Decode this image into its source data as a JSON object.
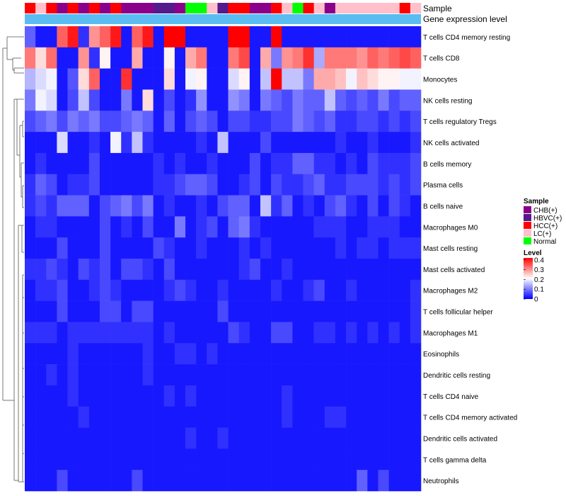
{
  "chart_data": {
    "type": "heatmap",
    "annotation_labels": [
      "Sample",
      "Gene expression level"
    ],
    "row_labels": [
      "T cells CD4 memory resting",
      "T cells CD8",
      "Monocytes",
      "NK cells resting",
      "T cells regulatory  Tregs",
      "NK cells activated",
      "B cells memory",
      "Plasma cells",
      "B cells naive",
      "Macrophages M0",
      "Mast cells resting",
      "Mast cells activated",
      "Macrophages M2",
      "T cells follicular helper",
      "Macrophages M1",
      "Eosinophils",
      "Dendritic cells resting",
      "T cells CD4 naive",
      "T cells CD4 memory activated",
      "Dendritic cells activated",
      "T cells gamma delta",
      "Neutrophils"
    ],
    "sample_annotation": [
      "HCC(+)",
      "LC(+)",
      "HCC(+)",
      "CHB(+)",
      "HCC(+)",
      "CHB(+)",
      "HCC(+)",
      "CHB(+)",
      "HCC(+)",
      "CHB(+)",
      "CHB(+)",
      "CHB(+)",
      "HBVC(+)",
      "HBVC(+)",
      "CHB(+)",
      "Normal",
      "Normal",
      "LC(+)",
      "HBVC(+)",
      "HCC(+)",
      "HCC(+)",
      "CHB(+)",
      "CHB(+)",
      "HCC(+)",
      "LC(+)",
      "Normal",
      "HCC(+)",
      "LC(+)",
      "CHB(+)",
      "LC(+)",
      "LC(+)",
      "LC(+)",
      "LC(+)",
      "LC(+)",
      "LC(+)",
      "HCC(+)",
      "LC(+)"
    ],
    "values": [
      [
        0.08,
        0.02,
        0.02,
        0.34,
        0.4,
        0.04,
        0.3,
        0.34,
        0.4,
        0.02,
        0.34,
        0.4,
        0.02,
        0.42,
        0.42,
        0.02,
        0.02,
        0.02,
        0.02,
        0.42,
        0.42,
        0.02,
        0.02,
        0.42,
        0.02,
        0.02,
        0.02,
        0.02,
        0.02,
        0.02,
        0.02,
        0.02,
        0.02,
        0.02,
        0.02,
        0.02,
        0.02
      ],
      [
        0.32,
        0.24,
        0.33,
        0.02,
        0.02,
        0.3,
        0.04,
        0.22,
        0.02,
        0.02,
        0.28,
        0.02,
        0.02,
        0.22,
        0.02,
        0.28,
        0.32,
        0.02,
        0.02,
        0.32,
        0.36,
        0.02,
        0.28,
        0.1,
        0.3,
        0.32,
        0.38,
        0.14,
        0.32,
        0.32,
        0.32,
        0.3,
        0.34,
        0.32,
        0.34,
        0.36,
        0.34
      ],
      [
        0.15,
        0.18,
        0.2,
        0.02,
        0.07,
        0.24,
        0.34,
        0.02,
        0.02,
        0.38,
        0.02,
        0.02,
        0.02,
        0.24,
        0.02,
        0.2,
        0.22,
        0.02,
        0.02,
        0.18,
        0.22,
        0.02,
        0.16,
        0.42,
        0.16,
        0.16,
        0.1,
        0.28,
        0.28,
        0.26,
        0.2,
        0.26,
        0.24,
        0.22,
        0.22,
        0.2,
        0.2
      ],
      [
        0.1,
        0.2,
        0.18,
        0.02,
        0.06,
        0.16,
        0.06,
        0.02,
        0.02,
        0.1,
        0.02,
        0.24,
        0.02,
        0.06,
        0.02,
        0.04,
        0.12,
        0.02,
        0.02,
        0.12,
        0.1,
        0.02,
        0.1,
        0.08,
        0.06,
        0.1,
        0.08,
        0.08,
        0.16,
        0.08,
        0.06,
        0.08,
        0.06,
        0.1,
        0.06,
        0.08,
        0.08
      ],
      [
        0.06,
        0.08,
        0.1,
        0.06,
        0.1,
        0.08,
        0.1,
        0.06,
        0.06,
        0.08,
        0.1,
        0.08,
        0.02,
        0.08,
        0.02,
        0.06,
        0.08,
        0.06,
        0.02,
        0.06,
        0.06,
        0.04,
        0.04,
        0.06,
        0.06,
        0.1,
        0.08,
        0.06,
        0.08,
        0.04,
        0.04,
        0.06,
        0.06,
        0.04,
        0.06,
        0.04,
        0.06
      ],
      [
        0.02,
        0.02,
        0.02,
        0.18,
        0.02,
        0.02,
        0.04,
        0.02,
        0.2,
        0.04,
        0.16,
        0.04,
        0.02,
        0.02,
        0.02,
        0.02,
        0.04,
        0.02,
        0.16,
        0.02,
        0.02,
        0.02,
        0.06,
        0.02,
        0.02,
        0.02,
        0.02,
        0.02,
        0.02,
        0.04,
        0.02,
        0.02,
        0.04,
        0.02,
        0.02,
        0.02,
        0.04
      ],
      [
        0.02,
        0.04,
        0.02,
        0.02,
        0.02,
        0.02,
        0.06,
        0.02,
        0.02,
        0.02,
        0.02,
        0.02,
        0.04,
        0.02,
        0.04,
        0.02,
        0.02,
        0.04,
        0.02,
        0.02,
        0.02,
        0.06,
        0.02,
        0.04,
        0.04,
        0.08,
        0.08,
        0.04,
        0.04,
        0.02,
        0.04,
        0.02,
        0.06,
        0.04,
        0.04,
        0.04,
        0.06
      ],
      [
        0.04,
        0.08,
        0.06,
        0.02,
        0.04,
        0.04,
        0.06,
        0.02,
        0.02,
        0.02,
        0.02,
        0.02,
        0.04,
        0.04,
        0.06,
        0.08,
        0.08,
        0.06,
        0.02,
        0.02,
        0.04,
        0.06,
        0.02,
        0.06,
        0.04,
        0.04,
        0.06,
        0.08,
        0.04,
        0.04,
        0.06,
        0.06,
        0.06,
        0.04,
        0.06,
        0.04,
        0.06
      ],
      [
        0.04,
        0.06,
        0.04,
        0.08,
        0.08,
        0.08,
        0.02,
        0.06,
        0.08,
        0.1,
        0.06,
        0.1,
        0.02,
        0.04,
        0.02,
        0.02,
        0.04,
        0.02,
        0.06,
        0.08,
        0.08,
        0.02,
        0.16,
        0.04,
        0.08,
        0.02,
        0.04,
        0.02,
        0.06,
        0.08,
        0.04,
        0.02,
        0.06,
        0.02,
        0.06,
        0.04,
        0.02
      ],
      [
        0.02,
        0.04,
        0.04,
        0.02,
        0.02,
        0.02,
        0.02,
        0.06,
        0.02,
        0.04,
        0.02,
        0.06,
        0.02,
        0.02,
        0.1,
        0.02,
        0.04,
        0.06,
        0.02,
        0.08,
        0.1,
        0.04,
        0.02,
        0.02,
        0.02,
        0.02,
        0.02,
        0.04,
        0.04,
        0.04,
        0.02,
        0.02,
        0.04,
        0.04,
        0.04,
        0.02,
        0.02
      ],
      [
        0.02,
        0.02,
        0.02,
        0.06,
        0.02,
        0.02,
        0.02,
        0.06,
        0.02,
        0.02,
        0.02,
        0.02,
        0.06,
        0.04,
        0.02,
        0.02,
        0.04,
        0.02,
        0.02,
        0.02,
        0.04,
        0.02,
        0.04,
        0.02,
        0.02,
        0.02,
        0.02,
        0.02,
        0.02,
        0.04,
        0.02,
        0.04,
        0.04,
        0.02,
        0.04,
        0.04,
        0.04
      ],
      [
        0.04,
        0.04,
        0.06,
        0.04,
        0.02,
        0.06,
        0.04,
        0.06,
        0.02,
        0.06,
        0.06,
        0.04,
        0.02,
        0.06,
        0.02,
        0.02,
        0.02,
        0.02,
        0.02,
        0.02,
        0.04,
        0.06,
        0.02,
        0.02,
        0.04,
        0.02,
        0.02,
        0.02,
        0.02,
        0.02,
        0.02,
        0.02,
        0.02,
        0.02,
        0.02,
        0.02,
        0.02
      ],
      [
        0.02,
        0.04,
        0.04,
        0.06,
        0.02,
        0.02,
        0.04,
        0.06,
        0.04,
        0.02,
        0.02,
        0.02,
        0.02,
        0.04,
        0.06,
        0.04,
        0.02,
        0.02,
        0.04,
        0.02,
        0.02,
        0.02,
        0.02,
        0.04,
        0.02,
        0.02,
        0.04,
        0.06,
        0.02,
        0.02,
        0.04,
        0.02,
        0.02,
        0.02,
        0.02,
        0.02,
        0.04
      ],
      [
        0.02,
        0.02,
        0.02,
        0.06,
        0.02,
        0.02,
        0.02,
        0.06,
        0.06,
        0.02,
        0.06,
        0.06,
        0.02,
        0.02,
        0.02,
        0.02,
        0.02,
        0.02,
        0.06,
        0.02,
        0.02,
        0.02,
        0.02,
        0.02,
        0.02,
        0.02,
        0.02,
        0.02,
        0.02,
        0.02,
        0.02,
        0.02,
        0.02,
        0.02,
        0.02,
        0.02,
        0.04
      ],
      [
        0.04,
        0.04,
        0.04,
        0.02,
        0.04,
        0.04,
        0.04,
        0.04,
        0.04,
        0.04,
        0.04,
        0.04,
        0.02,
        0.04,
        0.02,
        0.02,
        0.02,
        0.02,
        0.02,
        0.06,
        0.04,
        0.02,
        0.02,
        0.06,
        0.06,
        0.02,
        0.02,
        0.04,
        0.04,
        0.02,
        0.04,
        0.02,
        0.04,
        0.02,
        0.04,
        0.02,
        0.04
      ],
      [
        0.02,
        0.02,
        0.02,
        0.02,
        0.04,
        0.02,
        0.02,
        0.02,
        0.02,
        0.02,
        0.02,
        0.04,
        0.02,
        0.02,
        0.04,
        0.04,
        0.02,
        0.04,
        0.02,
        0.02,
        0.02,
        0.02,
        0.02,
        0.02,
        0.02,
        0.02,
        0.02,
        0.02,
        0.02,
        0.02,
        0.02,
        0.02,
        0.02,
        0.02,
        0.02,
        0.02,
        0.02
      ],
      [
        0.02,
        0.02,
        0.04,
        0.02,
        0.04,
        0.02,
        0.02,
        0.02,
        0.02,
        0.02,
        0.02,
        0.04,
        0.02,
        0.02,
        0.02,
        0.02,
        0.02,
        0.02,
        0.02,
        0.02,
        0.02,
        0.02,
        0.02,
        0.02,
        0.02,
        0.02,
        0.02,
        0.02,
        0.02,
        0.02,
        0.02,
        0.02,
        0.02,
        0.02,
        0.02,
        0.02,
        0.02
      ],
      [
        0.02,
        0.02,
        0.02,
        0.02,
        0.04,
        0.02,
        0.02,
        0.02,
        0.02,
        0.02,
        0.02,
        0.02,
        0.02,
        0.04,
        0.02,
        0.04,
        0.02,
        0.02,
        0.02,
        0.02,
        0.02,
        0.02,
        0.02,
        0.02,
        0.04,
        0.02,
        0.02,
        0.02,
        0.02,
        0.02,
        0.02,
        0.02,
        0.02,
        0.02,
        0.02,
        0.02,
        0.02
      ],
      [
        0.02,
        0.02,
        0.02,
        0.02,
        0.02,
        0.04,
        0.02,
        0.02,
        0.02,
        0.02,
        0.02,
        0.02,
        0.02,
        0.02,
        0.02,
        0.02,
        0.02,
        0.02,
        0.02,
        0.02,
        0.02,
        0.02,
        0.02,
        0.02,
        0.04,
        0.02,
        0.02,
        0.02,
        0.04,
        0.04,
        0.02,
        0.02,
        0.02,
        0.02,
        0.02,
        0.02,
        0.02
      ],
      [
        0.02,
        0.02,
        0.02,
        0.02,
        0.02,
        0.02,
        0.02,
        0.02,
        0.02,
        0.02,
        0.02,
        0.02,
        0.02,
        0.02,
        0.02,
        0.04,
        0.02,
        0.02,
        0.04,
        0.02,
        0.02,
        0.02,
        0.02,
        0.02,
        0.02,
        0.02,
        0.02,
        0.02,
        0.02,
        0.02,
        0.02,
        0.02,
        0.02,
        0.02,
        0.02,
        0.02,
        0.02
      ],
      [
        0.02,
        0.02,
        0.02,
        0.02,
        0.02,
        0.02,
        0.02,
        0.02,
        0.02,
        0.02,
        0.02,
        0.02,
        0.02,
        0.02,
        0.02,
        0.02,
        0.02,
        0.02,
        0.02,
        0.02,
        0.02,
        0.02,
        0.02,
        0.02,
        0.02,
        0.02,
        0.02,
        0.02,
        0.02,
        0.02,
        0.02,
        0.02,
        0.02,
        0.02,
        0.02,
        0.02,
        0.02
      ],
      [
        0.02,
        0.02,
        0.02,
        0.06,
        0.02,
        0.02,
        0.02,
        0.02,
        0.02,
        0.02,
        0.06,
        0.02,
        0.02,
        0.02,
        0.02,
        0.02,
        0.02,
        0.02,
        0.02,
        0.02,
        0.02,
        0.02,
        0.02,
        0.02,
        0.02,
        0.02,
        0.02,
        0.02,
        0.02,
        0.02,
        0.02,
        0.08,
        0.02,
        0.06,
        0.02,
        0.02,
        0.02
      ]
    ],
    "legend_sample": {
      "title": "Sample",
      "items": [
        {
          "label": "CHB(+)",
          "color": "#8b008b"
        },
        {
          "label": "HBVC(+)",
          "color": "#551a8b"
        },
        {
          "label": "HCC(+)",
          "color": "#ff0000"
        },
        {
          "label": "LC(+)",
          "color": "#ffc0cb"
        },
        {
          "label": "Normal",
          "color": "#00ff00"
        }
      ]
    },
    "legend_level": {
      "title": "Level",
      "ticks": [
        "0.4",
        "0.3",
        "0.2",
        "0.1",
        "0"
      ],
      "range": [
        0,
        0.42
      ]
    },
    "color_scale": {
      "low": "#0000ff",
      "mid": "#ffffff",
      "high": "#ff0000",
      "mid_value": 0.21,
      "max_value": 0.42
    },
    "expression_bar_color": "#5bbcf2"
  }
}
